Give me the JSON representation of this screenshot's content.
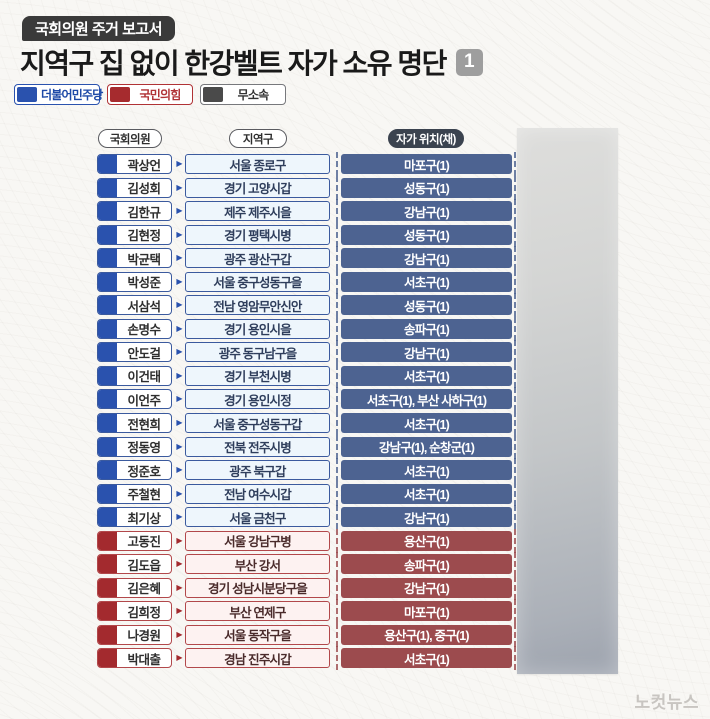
{
  "header": {
    "kicker": "국회의원 주거 보고서",
    "title": "지역구 집 없이 한강벨트 자가 소유 명단",
    "page_badge": "1"
  },
  "legend": [
    {
      "label": "더불어민주당",
      "swatch": "#2a52ae",
      "border": "#2a52ae",
      "text_color": "#1d49a7"
    },
    {
      "label": "국민의힘",
      "swatch": "#a62b2e",
      "border": "#b03235",
      "text_color": "#b03235"
    },
    {
      "label": "무소속",
      "swatch": "#4a4a4a",
      "border": "#77787c",
      "text_color": "#333333"
    }
  ],
  "party_styles": {
    "blue": {
      "flag": "#2a52ae",
      "border": "#3b5a9e",
      "district_bg": "#eef6fc",
      "district_text": "#2f3e5c",
      "location_bg": "#4d6391",
      "dash": "#4d6391"
    },
    "red": {
      "flag": "#a32a2e",
      "border": "#b2484b",
      "district_bg": "#fdf2f1",
      "district_text": "#4a2b2b",
      "location_bg": "#9c4b4e",
      "dash": "#9c4b4e"
    }
  },
  "icons": {
    "arrow": "▶"
  },
  "watermark": "노컷뉴스",
  "colors": {
    "background": "#f8f7f4",
    "kicker_bg": "#3a3a3a",
    "title_text": "#1a1a1a",
    "page_badge_bg": "#9e9e9e",
    "column_pill_dark_bg": "#3b434f",
    "photo_bar_top": "#dededc",
    "photo_bar_bottom": "#9da3ae",
    "watermark_text": "#c8c5c1"
  },
  "chart_data": {
    "type": "table",
    "title": "지역구 집 없이 한강벨트 자가 소유 명단",
    "columns": [
      "국회의원",
      "지역구",
      "자가 위치(채)"
    ],
    "rows": [
      {
        "party": "blue",
        "name": "곽상언",
        "district": "서울 종로구",
        "location": "마포구(1)"
      },
      {
        "party": "blue",
        "name": "김성회",
        "district": "경기 고양시갑",
        "location": "성동구(1)"
      },
      {
        "party": "blue",
        "name": "김한규",
        "district": "제주 제주시을",
        "location": "강남구(1)"
      },
      {
        "party": "blue",
        "name": "김현정",
        "district": "경기 평택시병",
        "location": "성동구(1)"
      },
      {
        "party": "blue",
        "name": "박균택",
        "district": "광주 광산구갑",
        "location": "강남구(1)"
      },
      {
        "party": "blue",
        "name": "박성준",
        "district": "서울 중구성동구을",
        "location": "서초구(1)"
      },
      {
        "party": "blue",
        "name": "서삼석",
        "district": "전남 영암무안신안",
        "location": "성동구(1)"
      },
      {
        "party": "blue",
        "name": "손명수",
        "district": "경기 용인시을",
        "location": "송파구(1)"
      },
      {
        "party": "blue",
        "name": "안도걸",
        "district": "광주 동구남구을",
        "location": "강남구(1)"
      },
      {
        "party": "blue",
        "name": "이건태",
        "district": "경기 부천시병",
        "location": "서초구(1)"
      },
      {
        "party": "blue",
        "name": "이언주",
        "district": "경기 용인시정",
        "location": "서초구(1), 부산 사하구(1)"
      },
      {
        "party": "blue",
        "name": "전현희",
        "district": "서울 중구성동구갑",
        "location": "서초구(1)"
      },
      {
        "party": "blue",
        "name": "정동영",
        "district": "전북 전주시병",
        "location": "강남구(1), 순창군(1)"
      },
      {
        "party": "blue",
        "name": "정준호",
        "district": "광주 북구갑",
        "location": "서초구(1)"
      },
      {
        "party": "blue",
        "name": "주철현",
        "district": "전남 여수시갑",
        "location": "서초구(1)"
      },
      {
        "party": "blue",
        "name": "최기상",
        "district": "서울 금천구",
        "location": "강남구(1)"
      },
      {
        "party": "red",
        "name": "고동진",
        "district": "서울 강남구병",
        "location": "용산구(1)"
      },
      {
        "party": "red",
        "name": "김도읍",
        "district": "부산 강서",
        "location": "송파구(1)"
      },
      {
        "party": "red",
        "name": "김은혜",
        "district": "경기 성남시분당구을",
        "location": "강남구(1)"
      },
      {
        "party": "red",
        "name": "김희정",
        "district": "부산 연제구",
        "location": "마포구(1)"
      },
      {
        "party": "red",
        "name": "나경원",
        "district": "서울 동작구을",
        "location": "용산구(1), 중구(1)"
      },
      {
        "party": "red",
        "name": "박대출",
        "district": "경남 진주시갑",
        "location": "서초구(1)"
      }
    ]
  }
}
